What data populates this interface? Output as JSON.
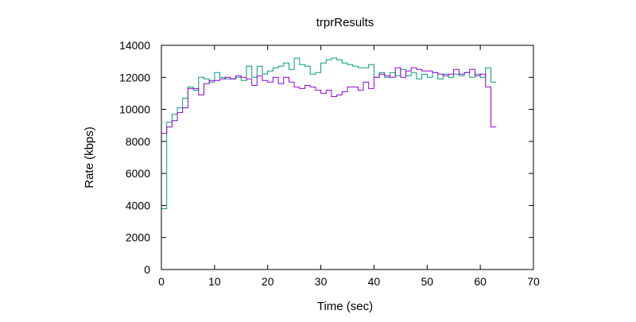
{
  "chart_data": {
    "type": "line",
    "title": "trprResults",
    "xlabel": "Time (sec)",
    "ylabel": "Rate (kbps)",
    "xlim": [
      0,
      70
    ],
    "ylim": [
      0,
      14000
    ],
    "xticks": [
      0,
      10,
      20,
      30,
      40,
      50,
      60,
      70
    ],
    "yticks": [
      0,
      2000,
      4000,
      6000,
      8000,
      10000,
      12000,
      14000
    ],
    "grid": false,
    "legend": "none",
    "step": true,
    "series": [
      {
        "color": "#009e73",
        "x": [
          0,
          1,
          2,
          3,
          4,
          5,
          6,
          7,
          8,
          9,
          10,
          11,
          12,
          13,
          14,
          15,
          16,
          17,
          18,
          19,
          20,
          21,
          22,
          23,
          24,
          25,
          26,
          27,
          28,
          29,
          30,
          31,
          32,
          33,
          34,
          35,
          36,
          37,
          38,
          39,
          40,
          41,
          42,
          43,
          44,
          45,
          46,
          47,
          48,
          49,
          50,
          51,
          52,
          53,
          54,
          55,
          56,
          57,
          58,
          59,
          60,
          61,
          62
        ],
        "values": [
          3800,
          9200,
          9700,
          10100,
          10700,
          11400,
          11200,
          12000,
          11900,
          11700,
          12300,
          12000,
          11900,
          11900,
          12000,
          11800,
          12700,
          12000,
          12700,
          12200,
          12400,
          12600,
          12700,
          12900,
          12500,
          13200,
          12800,
          12700,
          12200,
          12300,
          12900,
          13100,
          13200,
          13100,
          12900,
          12800,
          12700,
          12600,
          12600,
          12800,
          12000,
          12300,
          12000,
          12300,
          12100,
          12500,
          12100,
          12300,
          11900,
          12200,
          12000,
          12300,
          11900,
          12200,
          12000,
          12200,
          12100,
          12300,
          12000,
          12200,
          12000,
          12600,
          11700
        ]
      },
      {
        "color": "#9400d3",
        "x": [
          0,
          1,
          2,
          3,
          4,
          5,
          6,
          7,
          8,
          9,
          10,
          11,
          12,
          13,
          14,
          15,
          16,
          17,
          18,
          19,
          20,
          21,
          22,
          23,
          24,
          25,
          26,
          27,
          28,
          29,
          30,
          31,
          32,
          33,
          34,
          35,
          36,
          37,
          38,
          39,
          40,
          41,
          42,
          43,
          44,
          45,
          46,
          47,
          48,
          49,
          50,
          51,
          52,
          53,
          54,
          55,
          56,
          57,
          58,
          59,
          60,
          61,
          62
        ],
        "values": [
          8500,
          8900,
          9300,
          9800,
          10100,
          11300,
          11300,
          10900,
          11600,
          11800,
          11800,
          11900,
          12000,
          11900,
          12100,
          12000,
          11900,
          11500,
          12100,
          11800,
          11700,
          12000,
          11600,
          12000,
          11700,
          11400,
          11300,
          11500,
          11400,
          11200,
          11000,
          11200,
          10800,
          10900,
          11100,
          11400,
          11400,
          11200,
          11700,
          11300,
          12000,
          12200,
          12100,
          12000,
          12600,
          12000,
          12400,
          12600,
          12500,
          12400,
          12400,
          12300,
          12200,
          12100,
          12200,
          12500,
          12200,
          12300,
          12500,
          12100,
          12200,
          11400,
          8900
        ]
      }
    ]
  }
}
